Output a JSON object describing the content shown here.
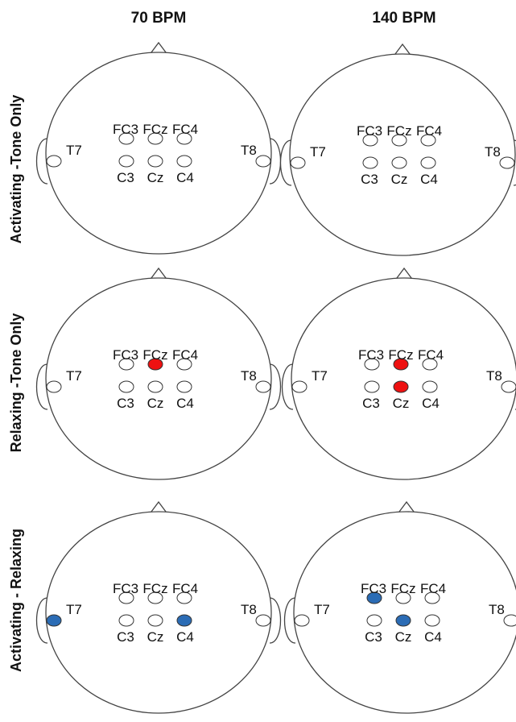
{
  "columns": [
    {
      "label": "70 BPM"
    },
    {
      "label": "140 BPM"
    }
  ],
  "rows": [
    {
      "label": "Activating -Tone Only"
    },
    {
      "label": "Relaxing -Tone Only"
    },
    {
      "label": "Activating - Relaxing"
    }
  ],
  "colors": {
    "none": "#ffffff",
    "red": "#ee1111",
    "blue": "#2b6cb5"
  },
  "electrodes": [
    "FC3",
    "FCz",
    "FC4",
    "C3",
    "Cz",
    "C4",
    "T7",
    "T8"
  ],
  "panels": [
    {
      "row": 0,
      "col": 0,
      "highlight": {}
    },
    {
      "row": 0,
      "col": 1,
      "highlight": {}
    },
    {
      "row": 1,
      "col": 0,
      "highlight": {
        "FCz": "red"
      }
    },
    {
      "row": 1,
      "col": 1,
      "highlight": {
        "FCz": "red",
        "Cz": "red"
      }
    },
    {
      "row": 2,
      "col": 0,
      "highlight": {
        "T7": "blue",
        "C4": "blue"
      }
    },
    {
      "row": 2,
      "col": 1,
      "highlight": {
        "FC3": "blue",
        "Cz": "blue"
      }
    }
  ]
}
